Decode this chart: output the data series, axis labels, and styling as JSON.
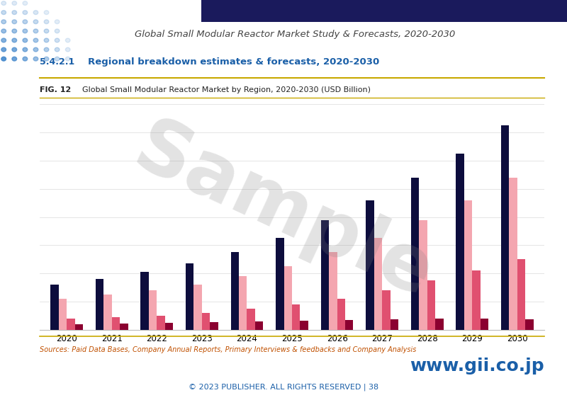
{
  "title": "Global Small Modular Reactor Market Study & Forecasts, 2020-2030",
  "section_num": "5.4.2.1",
  "section_title": "Regional breakdown estimates & forecasts, 2020-2030",
  "fig_num": "FIG. 12",
  "fig_title": "Global Small Modular Reactor Market by Region, 2020-2030 (USD Billion)",
  "source_text": "Sources: Paid Data Bases, Company Annual Reports, Primary Interviews & feedbacks and Company Analysis",
  "years": [
    2020,
    2021,
    2022,
    2023,
    2024,
    2025,
    2026,
    2027,
    2028,
    2029,
    2030
  ],
  "series": {
    "navy": [
      3.2,
      3.6,
      4.1,
      4.7,
      5.5,
      6.5,
      7.8,
      9.2,
      10.8,
      12.5,
      14.5
    ],
    "light_pink": [
      2.2,
      2.5,
      2.8,
      3.2,
      3.8,
      4.5,
      5.5,
      6.5,
      7.8,
      9.2,
      10.8
    ],
    "medium_pink": [
      0.8,
      0.9,
      1.0,
      1.2,
      1.5,
      1.8,
      2.2,
      2.8,
      3.5,
      4.2,
      5.0
    ],
    "dark_red": [
      0.4,
      0.45,
      0.5,
      0.55,
      0.6,
      0.65,
      0.7,
      0.75,
      0.8,
      0.82,
      0.78
    ]
  },
  "colors": {
    "navy": "#0d0d3d",
    "light_pink": "#f4a6b0",
    "medium_pink": "#e05070",
    "dark_red": "#8b0030",
    "background": "#ffffff",
    "top_bar": "#1a1a5c",
    "section_title_color": "#1a5fa8",
    "section_num_color": "#1a5fa8",
    "fig_num_color": "#222222",
    "source_color": "#c05000",
    "title_color": "#444444",
    "border_color": "#c8a800",
    "dot_color": "#4488cc",
    "watermark_color": "#aaaaaa"
  },
  "bar_width": 0.18,
  "ylim": [
    0,
    16
  ],
  "figsize": [
    8.0,
    5.65
  ],
  "dpi": 100
}
